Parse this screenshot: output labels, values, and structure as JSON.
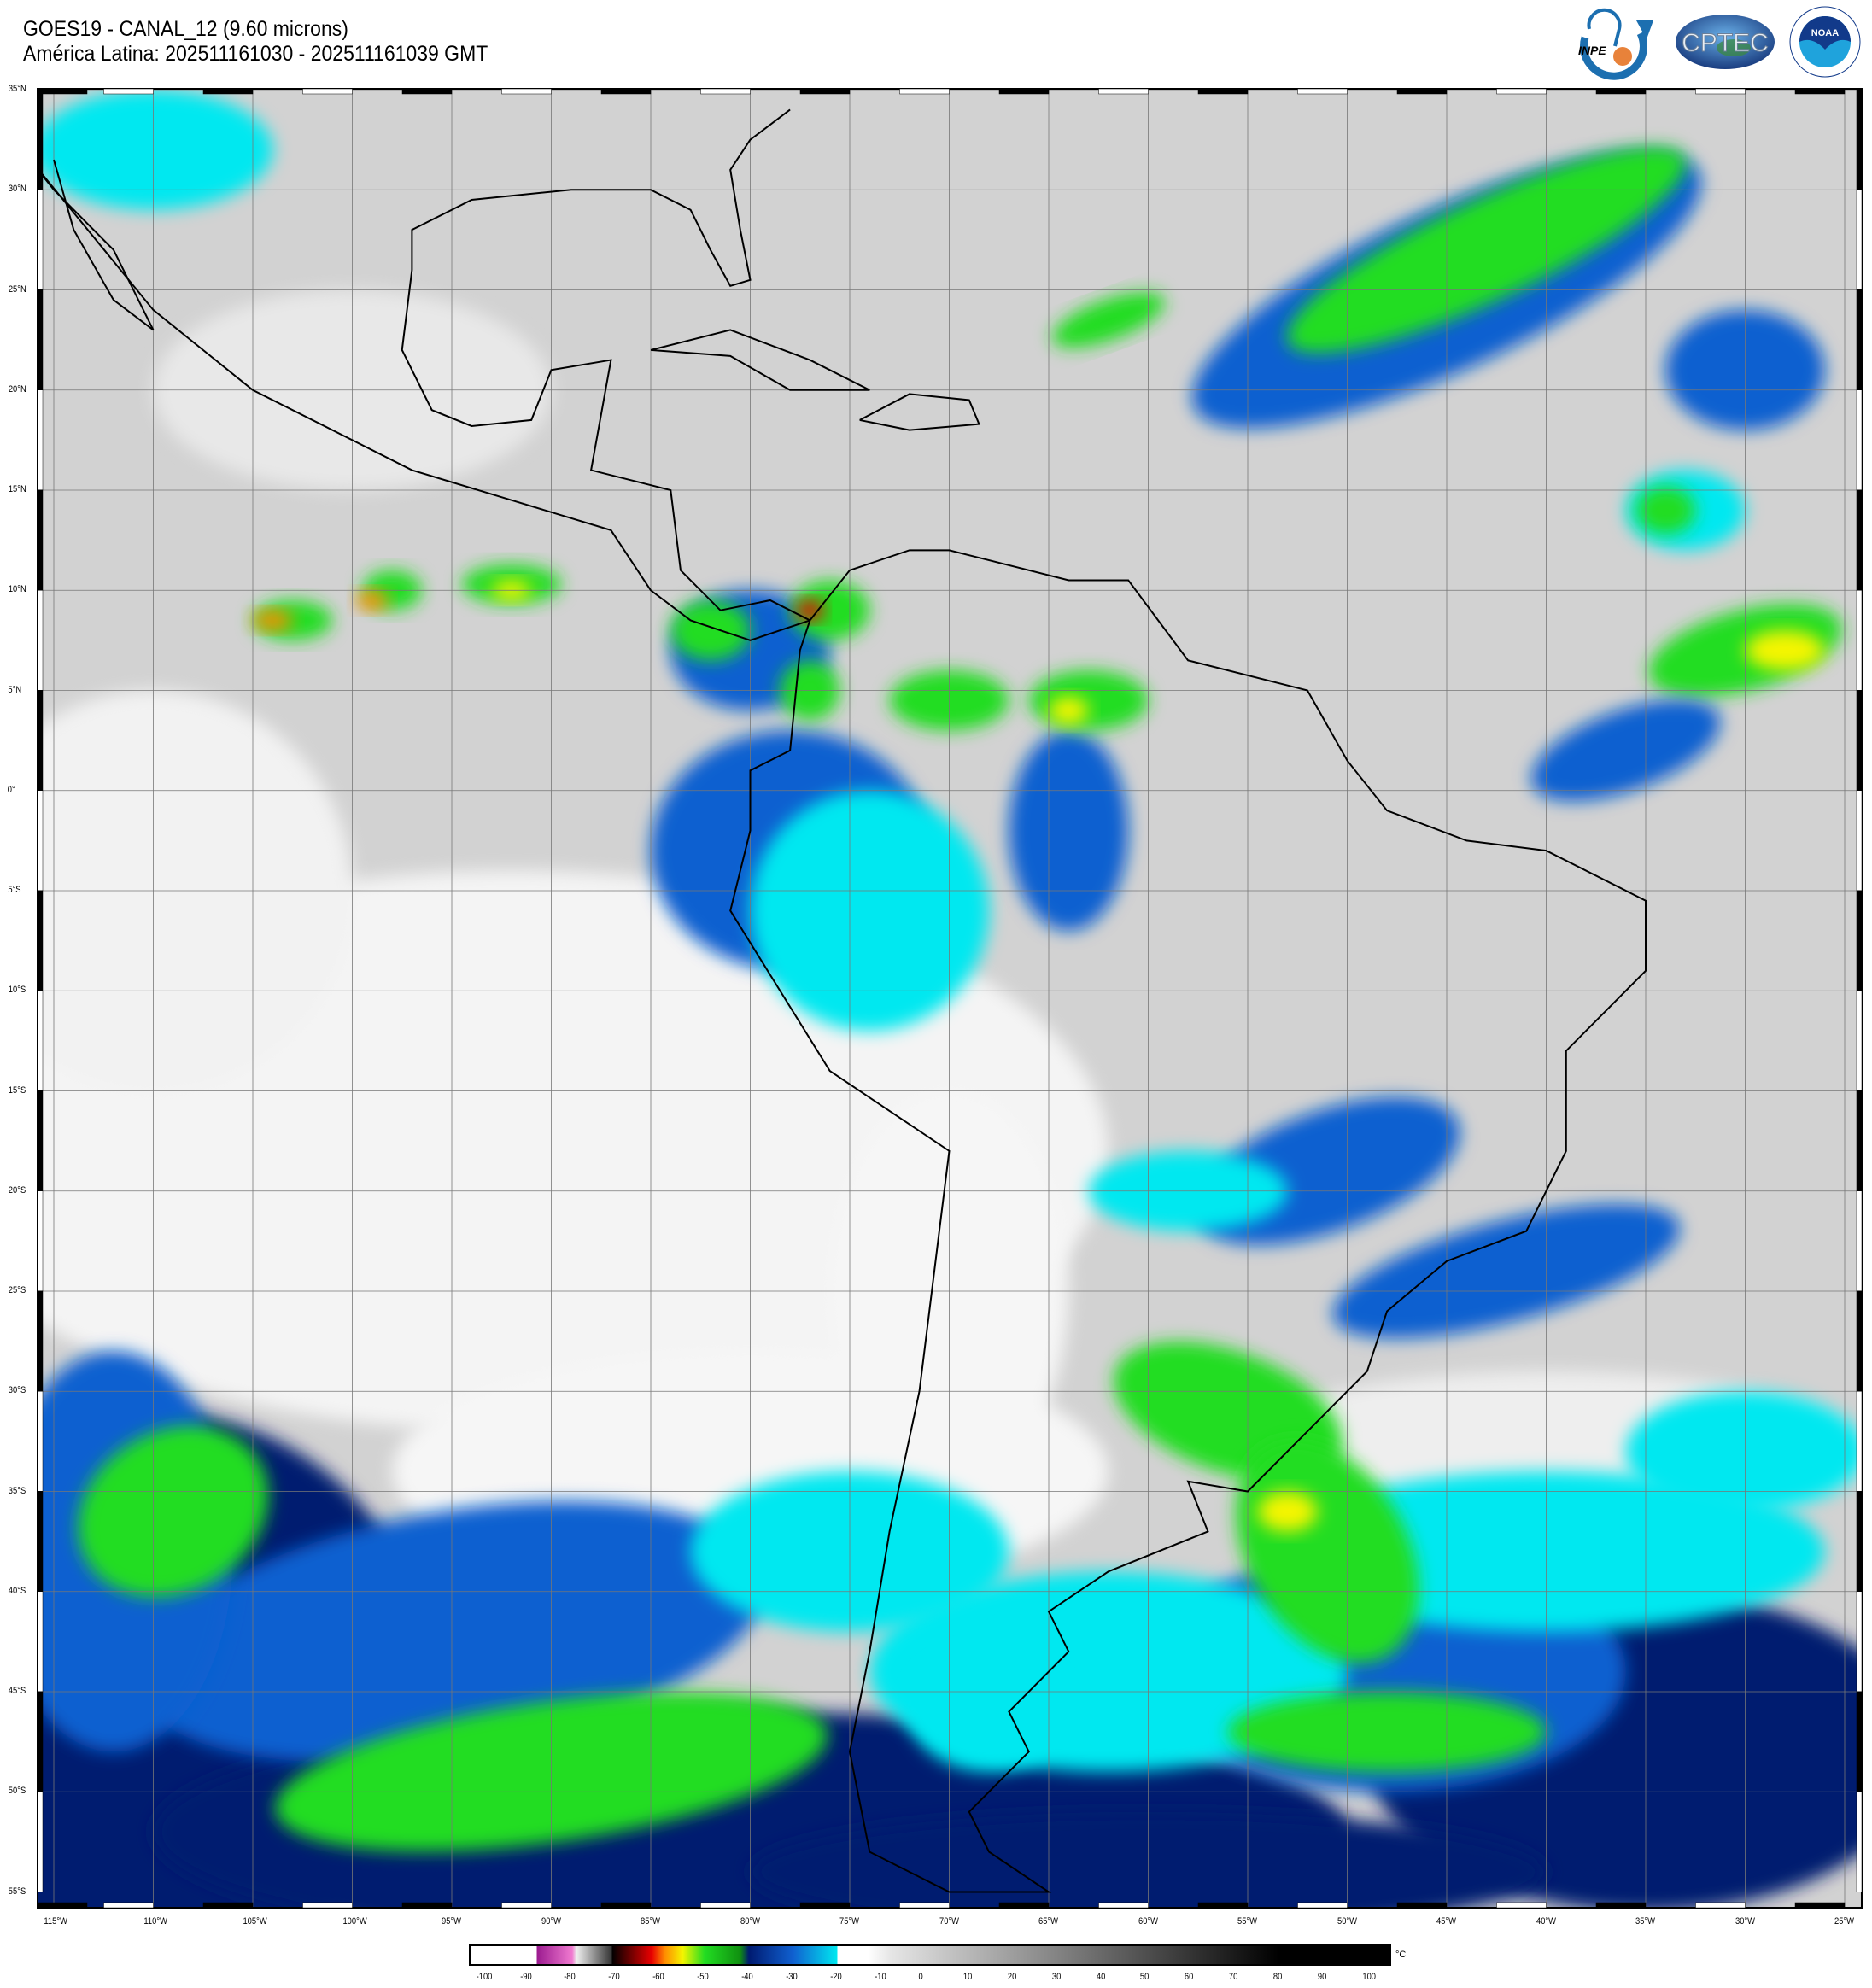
{
  "header": {
    "title_line1": "GOES19 - CANAL_12 (9.60 microns)",
    "title_line2": "América Latina: 202511161030 - 202511161039 GMT"
  },
  "logos": [
    {
      "name": "inpe-logo",
      "text": "INPE"
    },
    {
      "name": "cptec-logo",
      "text": "CPTEC"
    },
    {
      "name": "noaa-logo",
      "text": "NOAA"
    }
  ],
  "map": {
    "lat_labels": [
      "35°N",
      "30°N",
      "25°N",
      "20°N",
      "15°N",
      "10°N",
      "5°N",
      "0°",
      "5°S",
      "10°S",
      "15°S",
      "20°S",
      "25°S",
      "30°S",
      "35°S",
      "40°S",
      "45°S",
      "50°S",
      "55°S"
    ],
    "lon_labels": [
      "115°W",
      "110°W",
      "105°W",
      "100°W",
      "95°W",
      "90°W",
      "85°W",
      "80°W",
      "75°W",
      "70°W",
      "65°W",
      "60°W",
      "55°W",
      "50°W",
      "45°W",
      "40°W",
      "35°W",
      "30°W",
      "25°W"
    ],
    "background_color": "#d2d2d2"
  },
  "colorbar": {
    "unit": "°C",
    "ticks": [
      "-100",
      "-90",
      "-80",
      "-70",
      "-60",
      "-50",
      "-40",
      "-30",
      "-20",
      "-10",
      "0",
      "10",
      "20",
      "30",
      "40",
      "50",
      "60",
      "70",
      "80",
      "90",
      "100"
    ],
    "range": [
      -103,
      105
    ],
    "colors": {
      "magenta": "#9b1a8f",
      "pink": "#f07ad0",
      "red": "#e80000",
      "orange": "#ff8c00",
      "yellow": "#f5f500",
      "green": "#22dd22",
      "dark_blue": "#001a70",
      "blue": "#1060d0",
      "cyan": "#00e8f0"
    }
  }
}
